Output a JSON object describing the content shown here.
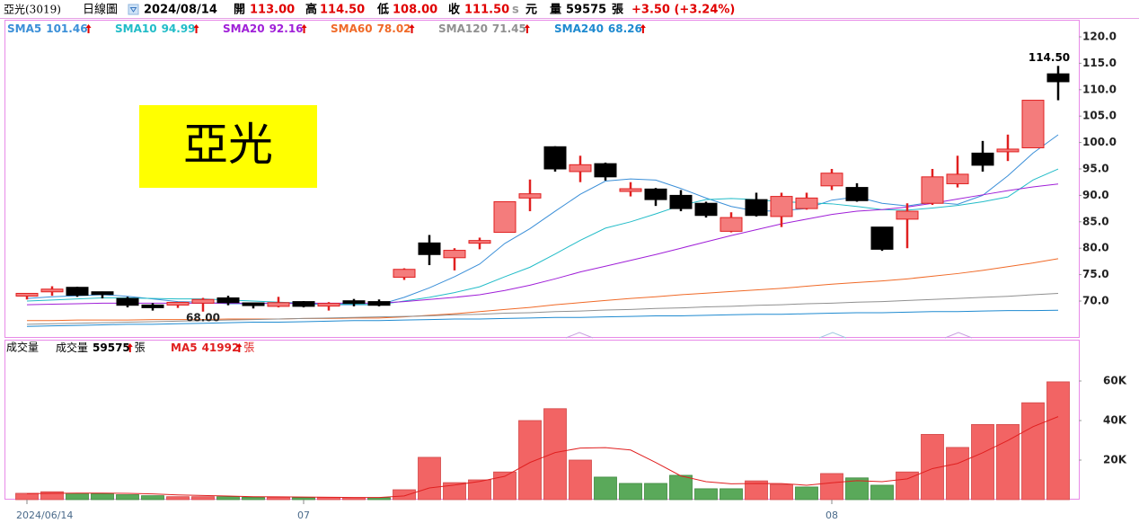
{
  "header": [
    {
      "text": "亞光(3019)",
      "color": "#000000"
    },
    {
      "text": "日線圖",
      "color": "#000000"
    },
    {
      "text": "2024/08/14",
      "color": "#000000"
    },
    {
      "text": "開",
      "color": "#000000"
    },
    {
      "text": "113.00",
      "color": "#e00000"
    },
    {
      "text": "高",
      "color": "#000000"
    },
    {
      "text": "114.50",
      "color": "#e00000"
    },
    {
      "text": "低",
      "color": "#000000"
    },
    {
      "text": "108.00",
      "color": "#e00000"
    },
    {
      "text": "收",
      "color": "#000000"
    },
    {
      "text": "111.50",
      "color": "#e00000"
    },
    {
      "text": "s",
      "color": "#999999"
    },
    {
      "text": "元",
      "color": "#000000"
    },
    {
      "text": "量",
      "color": "#000000"
    },
    {
      "text": "59575",
      "color": "#000000"
    },
    {
      "text": "張",
      "color": "#000000"
    },
    {
      "text": "+3.50 (+3.24%)",
      "color": "#e00000"
    }
  ],
  "chart_data": [
    {
      "type": "candlestick",
      "watermark": "亞光",
      "open": [
        70.8,
        71.8,
        72.6,
        71.5,
        70.5,
        69.0,
        69.1,
        69.6,
        70.6,
        69.4,
        69.0,
        69.9,
        68.9,
        69.8,
        69.9,
        74.5,
        81.0,
        78.2,
        81.0,
        83.0,
        89.5,
        99.2,
        94.5,
        96.0,
        91.0,
        91.2,
        90.0,
        88.5,
        83.2,
        89.2,
        86.0,
        87.5,
        91.8,
        91.5,
        84.0,
        85.5,
        88.5,
        92.2,
        98.0,
        98.5,
        99.0,
        113.0
      ],
      "high": [
        71.5,
        72.8,
        72.7,
        71.8,
        70.8,
        69.6,
        69.8,
        70.6,
        71.0,
        69.6,
        70.8,
        70.0,
        69.8,
        70.4,
        70.3,
        76.2,
        82.5,
        80.0,
        82.0,
        88.8,
        93.0,
        99.3,
        97.5,
        96.2,
        92.5,
        91.4,
        91.0,
        88.8,
        86.8,
        90.5,
        90.5,
        90.5,
        95.0,
        92.3,
        84.0,
        88.5,
        95.0,
        97.5,
        100.3,
        101.5,
        108.0,
        114.5
      ],
      "low": [
        70.3,
        71.0,
        70.8,
        70.5,
        68.8,
        68.2,
        68.7,
        68.0,
        69.2,
        68.6,
        68.8,
        68.8,
        68.2,
        69.0,
        69.0,
        74.0,
        76.8,
        75.8,
        79.8,
        83.0,
        87.0,
        94.5,
        92.5,
        92.8,
        89.8,
        88.0,
        87.0,
        85.8,
        83.0,
        86.0,
        84.0,
        87.3,
        91.0,
        88.8,
        79.5,
        80.0,
        88.2,
        91.5,
        94.5,
        96.5,
        99.0,
        108.0
      ],
      "close": [
        71.2,
        72.0,
        71.1,
        71.0,
        69.2,
        68.9,
        69.5,
        70.3,
        69.7,
        68.9,
        69.7,
        69.0,
        69.3,
        69.4,
        69.2,
        76.0,
        78.8,
        79.6,
        81.2,
        88.8,
        90.3,
        95.0,
        95.8,
        93.5,
        91.0,
        89.2,
        87.5,
        86.2,
        85.8,
        86.2,
        89.8,
        89.5,
        94.2,
        89.0,
        79.8,
        87.0,
        93.5,
        94.0,
        95.7,
        98.5,
        108.0,
        111.5
      ],
      "up_color": "#f47c7c",
      "up_edge_color": "#e02020",
      "down_color": "#000000",
      "max_label": "114.50",
      "min_label": "68.00",
      "series": [
        {
          "name": "SMA5",
          "color": "#3b8fd8",
          "values": [
            70.5,
            70.8,
            71.0,
            71.2,
            70.9,
            70.4,
            69.9,
            69.8,
            69.5,
            69.5,
            69.6,
            69.5,
            69.3,
            69.3,
            69.3,
            70.7,
            72.5,
            74.6,
            77.0,
            80.9,
            83.7,
            87.0,
            90.2,
            92.7,
            93.1,
            92.9,
            91.3,
            89.5,
            87.9,
            87.0,
            87.1,
            87.5,
            89.1,
            89.7,
            88.5,
            88.0,
            88.7,
            88.3,
            90.0,
            93.7,
            98.0,
            101.46
          ]
        },
        {
          "name": "SMA10",
          "color": "#22bcc8",
          "values": [
            70.0,
            70.2,
            70.4,
            70.6,
            70.6,
            70.5,
            70.4,
            70.4,
            70.2,
            70.0,
            69.8,
            69.6,
            69.5,
            69.4,
            69.3,
            70.0,
            70.7,
            71.6,
            72.7,
            74.6,
            76.4,
            78.9,
            81.5,
            83.8,
            85.0,
            86.5,
            88.1,
            89.2,
            89.4,
            89.2,
            88.8,
            88.6,
            88.4,
            87.9,
            87.3,
            87.2,
            87.6,
            88.1,
            88.8,
            89.7,
            92.9,
            94.99
          ]
        },
        {
          "name": "SMA20",
          "color": "#a020d8",
          "values": [
            69.3,
            69.4,
            69.5,
            69.6,
            69.6,
            69.6,
            69.6,
            69.6,
            69.6,
            69.6,
            69.6,
            69.6,
            69.6,
            69.6,
            69.6,
            69.9,
            70.3,
            70.7,
            71.2,
            72.0,
            73.0,
            74.2,
            75.5,
            76.6,
            77.7,
            78.8,
            80.0,
            81.2,
            82.4,
            83.5,
            84.6,
            85.5,
            86.4,
            87.0,
            87.3,
            87.8,
            88.5,
            89.3,
            90.1,
            90.9,
            91.6,
            92.16
          ]
        },
        {
          "name": "SMA60",
          "color": "#f06a28",
          "values": [
            66.3,
            66.3,
            66.4,
            66.4,
            66.4,
            66.5,
            66.5,
            66.5,
            66.6,
            66.6,
            66.6,
            66.7,
            66.7,
            66.8,
            66.8,
            67.0,
            67.3,
            67.6,
            68.0,
            68.4,
            68.8,
            69.3,
            69.7,
            70.1,
            70.5,
            70.8,
            71.2,
            71.5,
            71.8,
            72.1,
            72.4,
            72.8,
            73.2,
            73.5,
            73.8,
            74.2,
            74.7,
            75.2,
            75.8,
            76.5,
            77.2,
            78.02
          ]
        },
        {
          "name": "SMA120",
          "color": "#909090",
          "values": [
            65.6,
            65.7,
            65.8,
            65.9,
            66.0,
            66.1,
            66.2,
            66.3,
            66.4,
            66.5,
            66.6,
            66.7,
            66.8,
            66.9,
            67.0,
            67.1,
            67.2,
            67.4,
            67.5,
            67.7,
            67.8,
            68.0,
            68.1,
            68.3,
            68.4,
            68.6,
            68.7,
            68.9,
            69.0,
            69.2,
            69.3,
            69.5,
            69.6,
            69.8,
            69.9,
            70.1,
            70.3,
            70.5,
            70.7,
            70.9,
            71.2,
            71.45
          ]
        },
        {
          "name": "SMA240",
          "color": "#1f8ad0",
          "values": [
            65.2,
            65.3,
            65.4,
            65.5,
            65.6,
            65.6,
            65.7,
            65.8,
            65.9,
            66.0,
            66.0,
            66.1,
            66.2,
            66.3,
            66.3,
            66.4,
            66.5,
            66.6,
            66.6,
            66.7,
            66.8,
            66.9,
            66.9,
            67.0,
            67.1,
            67.2,
            67.2,
            67.3,
            67.4,
            67.5,
            67.5,
            67.6,
            67.7,
            67.8,
            67.8,
            67.9,
            68.0,
            68.0,
            68.1,
            68.2,
            68.2,
            68.26
          ]
        }
      ],
      "ylim": [
        63.03,
        123.23
      ],
      "yticks": [
        {
          "value": 70,
          "label": "70.0"
        },
        {
          "value": 75,
          "label": "75.0"
        },
        {
          "value": 80,
          "label": "80.0"
        },
        {
          "value": 85,
          "label": "85.0"
        },
        {
          "value": 90,
          "label": "90.0"
        },
        {
          "value": 95,
          "label": "95.0"
        },
        {
          "value": 100,
          "label": "100.0"
        },
        {
          "value": 105,
          "label": "105.0"
        },
        {
          "value": 110,
          "label": "110.0"
        },
        {
          "value": 115,
          "label": "115.0"
        },
        {
          "value": 120,
          "label": "120.0"
        }
      ]
    },
    {
      "type": "bar",
      "title": "成交量",
      "legend_name": "成交量",
      "unit": "張",
      "categories": [
        "2024/06/14",
        null,
        null,
        null,
        null,
        null,
        null,
        null,
        null,
        null,
        null,
        "07",
        null,
        null,
        null,
        null,
        null,
        null,
        null,
        null,
        null,
        null,
        null,
        null,
        null,
        null,
        null,
        null,
        null,
        null,
        null,
        null,
        "08",
        null,
        null,
        null,
        null,
        null,
        null,
        null,
        null,
        null
      ],
      "values": [
        3200,
        4000,
        3200,
        3000,
        2500,
        2000,
        1500,
        1500,
        1500,
        1200,
        1200,
        1000,
        1200,
        1000,
        1000,
        5000,
        21400,
        8600,
        10000,
        14000,
        40000,
        46000,
        20000,
        11400,
        8200,
        8200,
        12300,
        5500,
        5500,
        9500,
        7700,
        6400,
        13200,
        11000,
        7300,
        14000,
        33000,
        26400,
        38000,
        38000,
        49000,
        59575
      ],
      "up_color": "#f26464",
      "down_color": "#5aa95a",
      "series": [
        {
          "name": "MA5",
          "color": "#e02020",
          "values": [
            3000,
            3200,
            3300,
            3300,
            3200,
            2900,
            2400,
            2100,
            1800,
            1500,
            1400,
            1300,
            1200,
            1100,
            1100,
            1900,
            5900,
            7400,
            9200,
            11800,
            18800,
            23800,
            26100,
            26300,
            25100,
            18800,
            12000,
            9100,
            8000,
            8200,
            8100,
            7300,
            8500,
            9600,
            9100,
            10500,
            15700,
            18300,
            23700,
            29900,
            36900,
            41992
          ]
        }
      ],
      "ylim": [
        0,
        80900
      ],
      "yticks": [
        {
          "value": 20000,
          "label": "20K"
        },
        {
          "value": 40000,
          "label": "40K"
        },
        {
          "value": 60000,
          "label": "60K"
        }
      ]
    }
  ]
}
